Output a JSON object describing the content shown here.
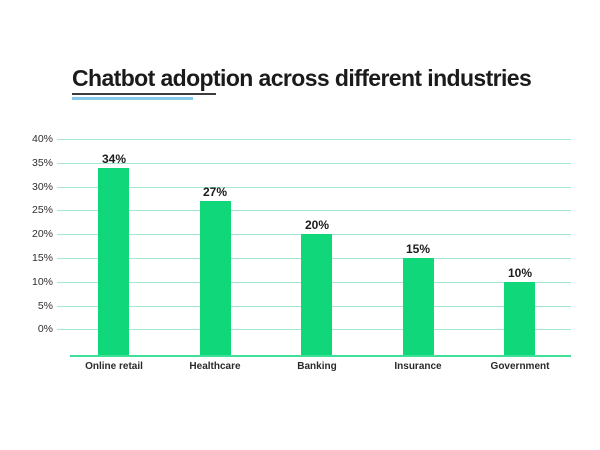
{
  "title": {
    "text": "Chatbot adoption across different industries",
    "underline_dark_color": "#3d3d3d",
    "underline_blue_color": "#85c8e8"
  },
  "chart_data": {
    "type": "bar",
    "title": "Chatbot adoption across different industries",
    "categories": [
      "Online retail",
      "Healthcare",
      "Banking",
      "Insurance",
      "Government"
    ],
    "values": [
      34,
      27,
      20,
      15,
      10
    ],
    "value_labels": [
      "34%",
      "27%",
      "20%",
      "15%",
      "10%"
    ],
    "y_tick_labels": [
      "40%",
      "35%",
      "30%",
      "25%",
      "20%",
      "15%",
      "10%",
      "5%",
      "0%"
    ],
    "y_tick_values": [
      40,
      35,
      30,
      25,
      20,
      15,
      10,
      5,
      0
    ],
    "xlabel": "",
    "ylabel": "",
    "ylim": [
      0,
      40
    ],
    "grid": true,
    "legend": "none",
    "bar_color": "#10d77a",
    "gridline_color": "#a5e7d1",
    "baseline_color": "#3ee097",
    "label_color": "#1c1c1c",
    "background_color": "#ffffff"
  }
}
